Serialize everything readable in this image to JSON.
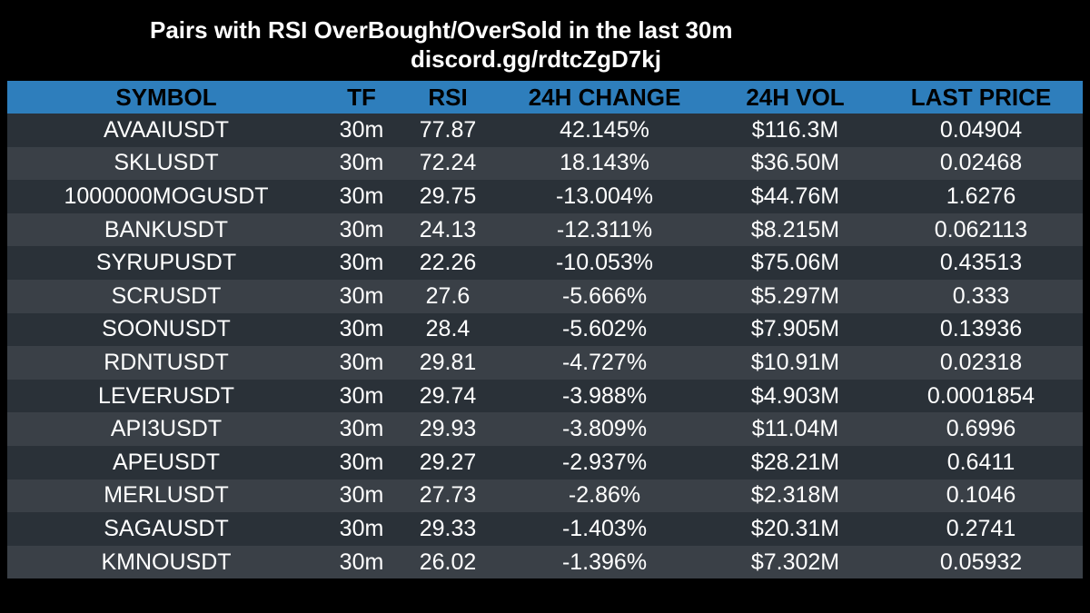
{
  "title": "Pairs with RSI OverBought/OverSold in the last 30m",
  "subtitle": "discord.gg/rdtcZgD7kj",
  "colors": {
    "background": "#000000",
    "header": "#2e7ebc",
    "row_dark": "#2a3138",
    "row_light": "#3a4047"
  },
  "table": {
    "headers": {
      "symbol": "SYMBOL",
      "tf": "TF",
      "rsi": "RSI",
      "change": "24H CHANGE",
      "vol": "24H VOL",
      "price": "LAST PRICE"
    },
    "rows": [
      {
        "symbol": "AVAAIUSDT",
        "tf": "30m",
        "rsi": "77.87",
        "change": "42.145%",
        "vol": "$116.3M",
        "price": "0.04904"
      },
      {
        "symbol": "SKLUSDT",
        "tf": "30m",
        "rsi": "72.24",
        "change": "18.143%",
        "vol": "$36.50M",
        "price": "0.02468"
      },
      {
        "symbol": "1000000MOGUSDT",
        "tf": "30m",
        "rsi": "29.75",
        "change": "-13.004%",
        "vol": "$44.76M",
        "price": "1.6276"
      },
      {
        "symbol": "BANKUSDT",
        "tf": "30m",
        "rsi": "24.13",
        "change": "-12.311%",
        "vol": "$8.215M",
        "price": "0.062113"
      },
      {
        "symbol": "SYRUPUSDT",
        "tf": "30m",
        "rsi": "22.26",
        "change": "-10.053%",
        "vol": "$75.06M",
        "price": "0.43513"
      },
      {
        "symbol": "SCRUSDT",
        "tf": "30m",
        "rsi": "27.6",
        "change": "-5.666%",
        "vol": "$5.297M",
        "price": "0.333"
      },
      {
        "symbol": "SOONUSDT",
        "tf": "30m",
        "rsi": "28.4",
        "change": "-5.602%",
        "vol": "$7.905M",
        "price": "0.13936"
      },
      {
        "symbol": "RDNTUSDT",
        "tf": "30m",
        "rsi": "29.81",
        "change": "-4.727%",
        "vol": "$10.91M",
        "price": "0.02318"
      },
      {
        "symbol": "LEVERUSDT",
        "tf": "30m",
        "rsi": "29.74",
        "change": "-3.988%",
        "vol": "$4.903M",
        "price": "0.0001854"
      },
      {
        "symbol": "API3USDT",
        "tf": "30m",
        "rsi": "29.93",
        "change": "-3.809%",
        "vol": "$11.04M",
        "price": "0.6996"
      },
      {
        "symbol": "APEUSDT",
        "tf": "30m",
        "rsi": "29.27",
        "change": "-2.937%",
        "vol": "$28.21M",
        "price": "0.6411"
      },
      {
        "symbol": "MERLUSDT",
        "tf": "30m",
        "rsi": "27.73",
        "change": "-2.86%",
        "vol": "$2.318M",
        "price": "0.1046"
      },
      {
        "symbol": "SAGAUSDT",
        "tf": "30m",
        "rsi": "29.33",
        "change": "-1.403%",
        "vol": "$20.31M",
        "price": "0.2741"
      },
      {
        "symbol": "KMNOUSDT",
        "tf": "30m",
        "rsi": "26.02",
        "change": "-1.396%",
        "vol": "$7.302M",
        "price": "0.05932"
      }
    ]
  }
}
